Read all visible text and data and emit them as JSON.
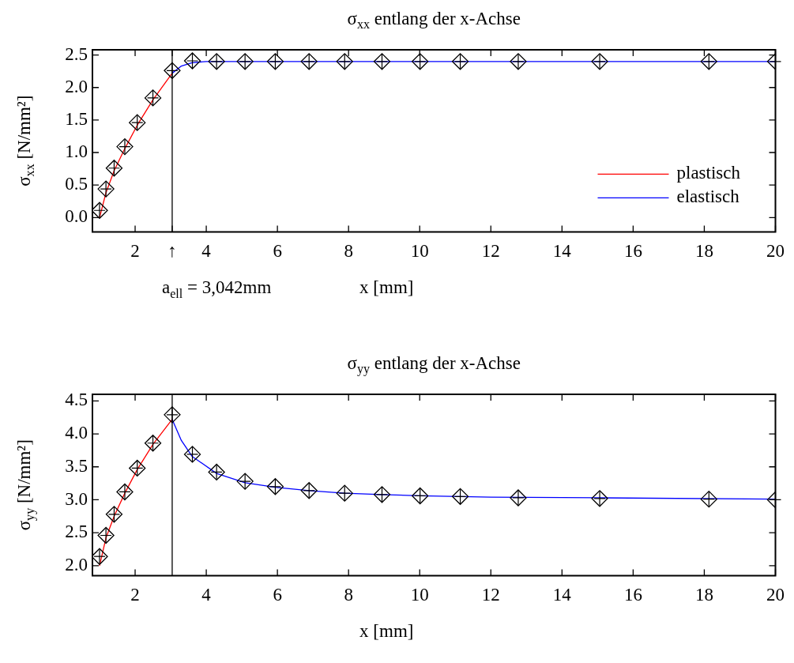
{
  "chart_data": [
    {
      "type": "line",
      "title": "σ$_{xx}$ entlang der x-Achse",
      "xlabel": "x [mm]",
      "ylabel": "σ$_{xx}$ [N/mm²]",
      "annotations": [
        "a$_{ell}$ = 3,042mm"
      ],
      "xlim": [
        0.8,
        20
      ],
      "ylim": [
        -0.22,
        2.58
      ],
      "xticks": [
        2,
        {
          "value": 3.042,
          "label": "↑"
        },
        4,
        6,
        8,
        10,
        12,
        14,
        16,
        18,
        20
      ],
      "yticks": [
        {
          "value": 0,
          "label": "0.0"
        },
        0.5,
        {
          "value": 1,
          "label": "1.0"
        },
        1.5,
        {
          "value": 2,
          "label": "2.0"
        },
        2.5
      ],
      "ref_lines": [
        {
          "axis": "x",
          "value": 3.042,
          "color": "#000000"
        }
      ],
      "grid": false,
      "legend": "bottom right",
      "series": [
        {
          "name": "plastisch",
          "type": "line",
          "color": "#ff0000",
          "x": [
            1.0,
            1.18,
            1.41,
            1.71,
            2.06,
            2.5,
            3.042
          ],
          "values": [
            0.0,
            0.38,
            0.72,
            1.06,
            1.42,
            1.81,
            2.22
          ]
        },
        {
          "name": "elastisch",
          "type": "line",
          "color": "#0000ff",
          "x": [
            3.042,
            3.3,
            3.6,
            4.0,
            5.0,
            10.0,
            20.0
          ],
          "values": [
            2.22,
            2.33,
            2.38,
            2.4,
            2.4,
            2.4,
            2.4
          ]
        },
        {
          "type": "scatter",
          "color": "#000000",
          "marker": "diamond",
          "x": [
            1.0,
            1.18,
            1.41,
            1.71,
            2.06,
            2.5,
            3.042,
            3.61,
            4.29,
            5.09,
            5.94,
            6.89,
            7.89,
            8.94,
            10.01,
            11.14,
            12.77,
            15.06,
            18.13,
            20.0
          ],
          "values": [
            0.11,
            0.44,
            0.76,
            1.09,
            1.46,
            1.84,
            2.26,
            2.41,
            2.4,
            2.4,
            2.4,
            2.4,
            2.4,
            2.4,
            2.4,
            2.4,
            2.4,
            2.4,
            2.4,
            2.4
          ]
        }
      ]
    },
    {
      "type": "line",
      "title": "σ$_{yy}$ entlang der x-Achse",
      "xlabel": "x [mm]",
      "ylabel": "σ$_{yy}$ [N/mm²]",
      "xlim": [
        0.8,
        20
      ],
      "ylim": [
        1.85,
        4.6
      ],
      "xticks": [
        2,
        4,
        6,
        8,
        10,
        12,
        14,
        16,
        18,
        20
      ],
      "yticks": [
        {
          "value": 2,
          "label": "2.0"
        },
        2.5,
        {
          "value": 3,
          "label": "3.0"
        },
        3.5,
        {
          "value": 4,
          "label": "4.0"
        },
        4.5
      ],
      "ref_lines": [
        {
          "axis": "x",
          "value": 3.042,
          "color": "#000000"
        }
      ],
      "grid": false,
      "series": [
        {
          "type": "line",
          "color": "#ff0000",
          "x": [
            1.0,
            1.18,
            1.41,
            1.71,
            2.06,
            2.5,
            3.042
          ],
          "values": [
            2.0,
            2.42,
            2.75,
            3.1,
            3.46,
            3.84,
            4.22
          ]
        },
        {
          "type": "line",
          "color": "#0000ff",
          "x": [
            3.042,
            3.3,
            3.6,
            4.29,
            5.09,
            5.94,
            6.89,
            7.89,
            8.94,
            10.0,
            12.0,
            15.0,
            20.0
          ],
          "values": [
            4.22,
            3.9,
            3.66,
            3.4,
            3.26,
            3.19,
            3.14,
            3.1,
            3.08,
            3.06,
            3.04,
            3.03,
            3.01
          ]
        },
        {
          "type": "scatter",
          "color": "#000000",
          "marker": "diamond",
          "x": [
            1.0,
            1.18,
            1.41,
            1.71,
            2.06,
            2.5,
            3.042,
            3.61,
            4.29,
            5.09,
            5.94,
            6.89,
            7.89,
            8.94,
            10.01,
            11.14,
            12.77,
            15.06,
            18.13,
            20.0
          ],
          "values": [
            2.14,
            2.46,
            2.78,
            3.12,
            3.48,
            3.86,
            4.29,
            3.69,
            3.42,
            3.28,
            3.2,
            3.14,
            3.1,
            3.08,
            3.06,
            3.05,
            3.03,
            3.02,
            3.01,
            3.0
          ]
        }
      ]
    }
  ]
}
